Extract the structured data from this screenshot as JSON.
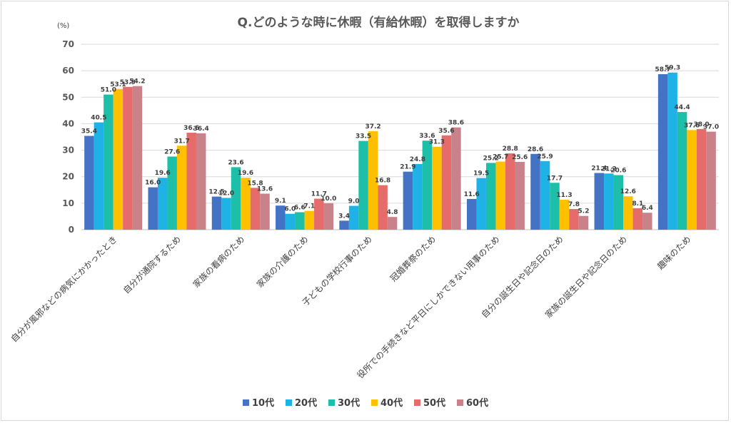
{
  "chart_data": {
    "type": "bar",
    "title": "Q.どのような時に休暇（有給休暇）を取得しますか",
    "unit_label": "(%)",
    "ylim": [
      0,
      70
    ],
    "yticks": [
      "0",
      "10",
      "20",
      "30",
      "40",
      "50",
      "60",
      "70"
    ],
    "grid": true,
    "legend_position": "bottom",
    "categories": [
      "自分が風邪などの病気にかかったとき",
      "自分が通院するため",
      "家族の看病のため",
      "家族の介護のため",
      "子どもの学校行事のため",
      "冠婚葬祭のため",
      "役所での手続きなど平日にしかできない用事のため",
      "自分の誕生日や記念日のため",
      "家族の誕生日や記念日のため",
      "趣味のため"
    ],
    "series": [
      {
        "name": "10代",
        "color": "#4472C4",
        "values": [
          35.4,
          16.0,
          12.5,
          9.1,
          3.4,
          21.9,
          11.6,
          28.6,
          21.4,
          58.7
        ],
        "labels": [
          "35.4",
          "16.0",
          "12.5",
          "9.1",
          "3.4",
          "21.9",
          "11.6",
          "28.6",
          "21.4",
          "58.7"
        ]
      },
      {
        "name": "20代",
        "color": "#1FB2E6",
        "values": [
          40.5,
          19.6,
          12.0,
          6.0,
          9.0,
          24.8,
          19.5,
          25.9,
          21.2,
          59.3
        ],
        "labels": [
          "40.5",
          "19.6",
          "12.0",
          "6.0",
          "9.0",
          "24.8",
          "19.5",
          "25.9",
          "21.2",
          "59.3"
        ]
      },
      {
        "name": "30代",
        "color": "#1DBFA8",
        "values": [
          51.0,
          27.6,
          23.6,
          6.6,
          33.5,
          33.6,
          25.2,
          17.7,
          20.6,
          44.4
        ],
        "labels": [
          "51.0",
          "27.6",
          "23.6",
          "6.6",
          "33.5",
          "33.6",
          "25.2",
          "17.7",
          "20.6",
          "44.4"
        ]
      },
      {
        "name": "40代",
        "color": "#FFC000",
        "values": [
          53.1,
          31.7,
          19.6,
          7.1,
          37.2,
          31.3,
          25.7,
          11.3,
          12.6,
          37.6
        ],
        "labels": [
          "53.1",
          "31.7",
          "19.6",
          "7.1",
          "37.2",
          "31.3",
          "25.7",
          "11.3",
          "12.6",
          "37.6"
        ]
      },
      {
        "name": "50代",
        "color": "#E66B6B",
        "values": [
          53.9,
          36.6,
          15.8,
          11.7,
          16.8,
          35.6,
          28.8,
          7.8,
          8.1,
          38.0
        ],
        "labels": [
          "53.9",
          "36.6",
          "15.8",
          "11.7",
          "16.8",
          "35.6",
          "28.8",
          "7.8",
          "8.1",
          "38.0"
        ]
      },
      {
        "name": "60代",
        "color": "#C9828A",
        "values": [
          54.2,
          36.4,
          13.6,
          10.0,
          4.8,
          38.6,
          25.6,
          5.2,
          6.4,
          37.0
        ],
        "labels": [
          "54.2",
          "36.4",
          "13.6",
          "10.0",
          "4.8",
          "38.6",
          "25.6",
          "5.2",
          "6.4",
          "37.0"
        ]
      }
    ]
  }
}
